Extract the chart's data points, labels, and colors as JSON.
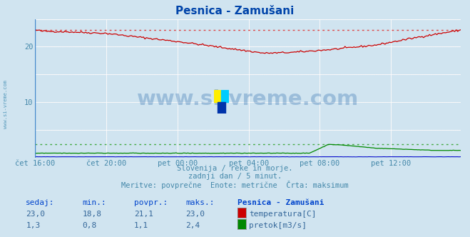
{
  "title": "Pesnica - Zamušani",
  "bg_color": "#d0e4f0",
  "plot_bg_color": "#d0e4f0",
  "title_color": "#0044aa",
  "xlabel_color": "#4488aa",
  "ylabel_color": "#4488aa",
  "xlim": [
    0,
    287
  ],
  "ylim": [
    0,
    25
  ],
  "ytick_vals": [
    10,
    20
  ],
  "xtick_labels": [
    "čet 16:00",
    "čet 20:00",
    "pet 00:00",
    "pet 04:00",
    "pet 08:00",
    "pet 12:00"
  ],
  "xtick_positions": [
    0,
    48,
    96,
    144,
    192,
    240
  ],
  "temp_max_line_y": 23.0,
  "flow_max_line_y": 2.4,
  "watermark_text": "www.si-vreme.com",
  "subtitle_lines": [
    "Slovenija / reke in morje.",
    "zadnji dan / 5 minut.",
    "Meritve: povprečne  Enote: metrične  Črta: maksimum"
  ],
  "table_headers": [
    "sedaj:",
    "min.:",
    "povpr.:",
    "maks.:",
    "Pesnica - Zamušani"
  ],
  "table_row1": [
    "23,0",
    "18,8",
    "21,1",
    "23,0",
    "temperatura[C]"
  ],
  "table_row2": [
    "1,3",
    "0,8",
    "1,1",
    "2,4",
    "pretok[m3/s]"
  ],
  "temp_color": "#cc0000",
  "flow_color": "#008800",
  "height_color": "#0000cc",
  "temp_dotted_color": "#dd4444",
  "flow_dotted_color": "#44aa44",
  "grid_white_color": "#ffffff",
  "grid_pink_color": "#e8c0c0",
  "logo_yellow": "#ffee00",
  "logo_cyan": "#00ccff",
  "logo_blue": "#0033aa",
  "watermark_color": "#2266aa",
  "left_text": "www.si-vreme.com"
}
